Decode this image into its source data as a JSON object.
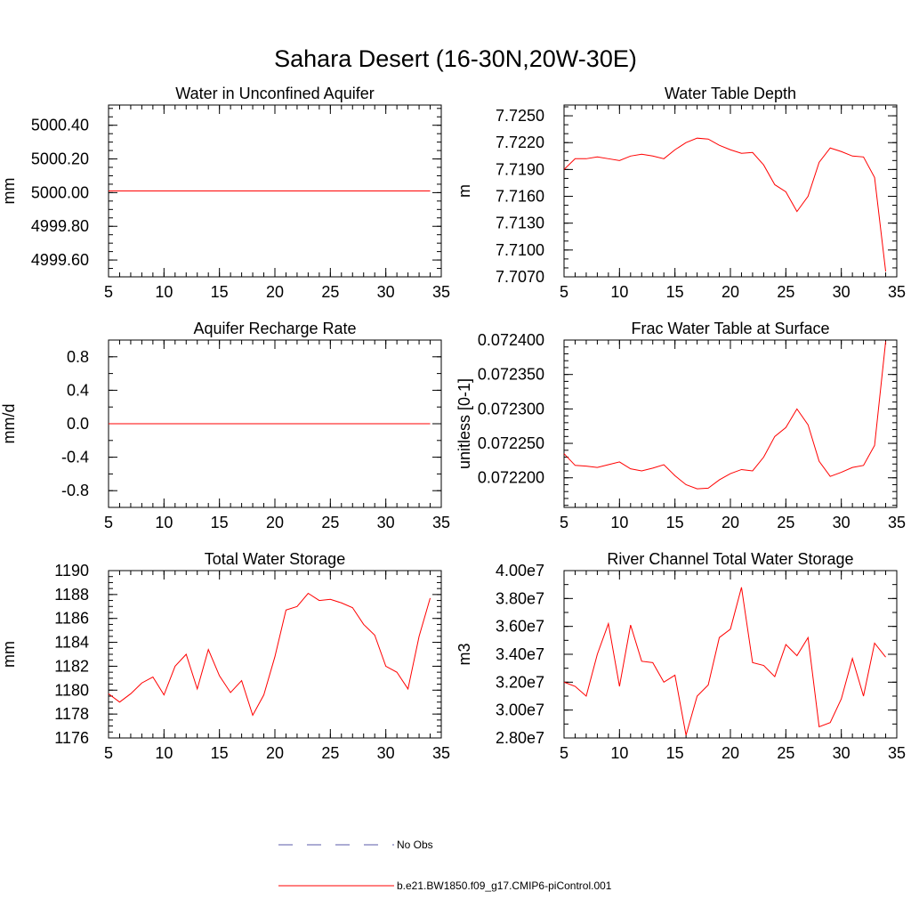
{
  "page": {
    "title": "Sahara Desert (16-30N,20W-30E)"
  },
  "legend": {
    "items": [
      {
        "label": "No Obs",
        "color": "#5a5aa8",
        "dash": true
      },
      {
        "label": "b.e21.BW1850.f09_g17.CMIP6-piControl.001",
        "color": "#ff0000",
        "dash": false
      }
    ]
  },
  "chart_data": [
    {
      "type": "line",
      "title": "Water in Unconfined Aquifer",
      "ylabel": "mm",
      "xlim": [
        5,
        35
      ],
      "ylim": [
        4999.5,
        5000.52
      ],
      "xticks": [
        5,
        10,
        15,
        20,
        25,
        30,
        35
      ],
      "xminor": 1,
      "yticks": [
        4999.6,
        4999.8,
        5000.0,
        5000.2,
        5000.4
      ],
      "ytick_labels": [
        "4999.60",
        "4999.80",
        "5000.00",
        "5000.20",
        "5000.40"
      ],
      "yminor": 0.05,
      "series": [
        {
          "color": "#ff0000",
          "x": [
            5,
            6,
            7,
            8,
            9,
            10,
            11,
            12,
            13,
            14,
            15,
            16,
            17,
            18,
            19,
            20,
            21,
            22,
            23,
            24,
            25,
            26,
            27,
            28,
            29,
            30,
            31,
            32,
            33,
            34
          ],
          "y": [
            5000.01,
            5000.01,
            5000.01,
            5000.01,
            5000.01,
            5000.01,
            5000.01,
            5000.01,
            5000.01,
            5000.01,
            5000.01,
            5000.01,
            5000.01,
            5000.01,
            5000.01,
            5000.01,
            5000.01,
            5000.01,
            5000.01,
            5000.01,
            5000.01,
            5000.01,
            5000.01,
            5000.01,
            5000.01,
            5000.01,
            5000.01,
            5000.01,
            5000.01,
            5000.01
          ]
        }
      ]
    },
    {
      "type": "line",
      "title": "Water Table Depth",
      "ylabel": "m",
      "xlim": [
        5,
        35
      ],
      "ylim": [
        7.707,
        7.7262
      ],
      "xticks": [
        5,
        10,
        15,
        20,
        25,
        30,
        35
      ],
      "xminor": 1,
      "yticks": [
        7.707,
        7.71,
        7.713,
        7.716,
        7.719,
        7.722,
        7.725
      ],
      "ytick_labels": [
        "7.7070",
        "7.7100",
        "7.7130",
        "7.7160",
        "7.7190",
        "7.7220",
        "7.7250"
      ],
      "yminor": 0.001,
      "series": [
        {
          "color": "#ff0000",
          "x": [
            5,
            6,
            7,
            8,
            9,
            10,
            11,
            12,
            13,
            14,
            15,
            16,
            17,
            18,
            19,
            20,
            21,
            22,
            23,
            24,
            25,
            26,
            27,
            28,
            29,
            30,
            31,
            32,
            33,
            34
          ],
          "y": [
            7.719,
            7.7202,
            7.7202,
            7.7204,
            7.7202,
            7.72,
            7.7205,
            7.7207,
            7.7205,
            7.7202,
            7.7212,
            7.722,
            7.7225,
            7.7224,
            7.7217,
            7.7212,
            7.7208,
            7.7209,
            7.7195,
            7.7173,
            7.7165,
            7.7143,
            7.716,
            7.7198,
            7.7214,
            7.721,
            7.7205,
            7.7204,
            7.7181,
            7.7076
          ]
        }
      ]
    },
    {
      "type": "line",
      "title": "Aquifer Recharge Rate",
      "ylabel": "mm/d",
      "xlim": [
        5,
        35
      ],
      "ylim": [
        -1.0,
        1.0
      ],
      "xticks": [
        5,
        10,
        15,
        20,
        25,
        30,
        35
      ],
      "xminor": 1,
      "yticks": [
        -0.8,
        -0.4,
        0.0,
        0.4,
        0.8
      ],
      "ytick_labels": [
        "-0.8",
        "-0.4",
        "0.0",
        "0.4",
        "0.8"
      ],
      "yminor": 0.2,
      "series": [
        {
          "color": "#ff0000",
          "x": [
            5,
            6,
            7,
            8,
            9,
            10,
            11,
            12,
            13,
            14,
            15,
            16,
            17,
            18,
            19,
            20,
            21,
            22,
            23,
            24,
            25,
            26,
            27,
            28,
            29,
            30,
            31,
            32,
            33,
            34
          ],
          "y": [
            0,
            0,
            0,
            0,
            0,
            0,
            0,
            0,
            0,
            0,
            0,
            0,
            0,
            0,
            0,
            0,
            0,
            0,
            0,
            0,
            0,
            0,
            0,
            0,
            0,
            0,
            0,
            0,
            0,
            0
          ]
        }
      ]
    },
    {
      "type": "line",
      "title": "Frac Water Table at Surface",
      "ylabel": "unitless [0-1]",
      "xlim": [
        5,
        35
      ],
      "ylim": [
        0.072157,
        0.0724
      ],
      "xticks": [
        5,
        10,
        15,
        20,
        25,
        30,
        35
      ],
      "xminor": 1,
      "yticks": [
        0.0722,
        0.07225,
        0.0723,
        0.07235,
        0.0724
      ],
      "ytick_labels": [
        "0.072200",
        "0.072250",
        "0.072300",
        "0.072350",
        "0.072400"
      ],
      "yminor": 1e-05,
      "series": [
        {
          "color": "#ff0000",
          "x": [
            5,
            6,
            7,
            8,
            9,
            10,
            11,
            12,
            13,
            14,
            15,
            16,
            17,
            18,
            19,
            20,
            21,
            22,
            23,
            24,
            25,
            26,
            27,
            28,
            29,
            30,
            31,
            32,
            33,
            34
          ],
          "y": [
            0.072235,
            0.072218,
            0.072217,
            0.072215,
            0.072219,
            0.072223,
            0.072213,
            0.07221,
            0.072214,
            0.072219,
            0.072203,
            0.07219,
            0.072184,
            0.072185,
            0.072197,
            0.072206,
            0.072212,
            0.07221,
            0.07223,
            0.07226,
            0.072273,
            0.0723,
            0.072277,
            0.072224,
            0.072202,
            0.072208,
            0.072215,
            0.072218,
            0.072247,
            0.072398
          ]
        }
      ]
    },
    {
      "type": "line",
      "title": "Total Water Storage",
      "ylabel": "mm",
      "xlim": [
        5,
        35
      ],
      "ylim": [
        1176,
        1190
      ],
      "xticks": [
        5,
        10,
        15,
        20,
        25,
        30,
        35
      ],
      "xminor": 1,
      "yticks": [
        1176,
        1178,
        1180,
        1182,
        1184,
        1186,
        1188,
        1190
      ],
      "ytick_labels": [
        "1176",
        "1178",
        "1180",
        "1182",
        "1184",
        "1186",
        "1188",
        "1190"
      ],
      "yminor": 0.5,
      "series": [
        {
          "color": "#ff0000",
          "x": [
            5,
            6,
            7,
            8,
            9,
            10,
            11,
            12,
            13,
            14,
            15,
            16,
            17,
            18,
            19,
            20,
            21,
            22,
            23,
            24,
            25,
            26,
            27,
            28,
            29,
            30,
            31,
            32,
            33,
            34
          ],
          "y": [
            1179.7,
            1179.0,
            1179.7,
            1180.6,
            1181.1,
            1179.6,
            1182.0,
            1183.0,
            1180.1,
            1183.4,
            1181.2,
            1179.8,
            1180.8,
            1177.9,
            1179.6,
            1182.8,
            1186.7,
            1187.0,
            1188.1,
            1187.5,
            1187.6,
            1187.3,
            1186.9,
            1185.5,
            1184.6,
            1182.0,
            1181.5,
            1180.1,
            1184.5,
            1187.7
          ]
        }
      ]
    },
    {
      "type": "line",
      "title": "River Channel Total Water Storage",
      "ylabel": "m3",
      "xlim": [
        5,
        35
      ],
      "ylim": [
        28000000,
        40000000
      ],
      "xticks": [
        5,
        10,
        15,
        20,
        25,
        30,
        35
      ],
      "xminor": 1,
      "yticks": [
        28000000,
        30000000,
        32000000,
        34000000,
        36000000,
        38000000,
        40000000
      ],
      "ytick_labels": [
        "2.80e7",
        "3.00e7",
        "3.20e7",
        "3.40e7",
        "3.60e7",
        "3.80e7",
        "4.00e7"
      ],
      "yminor": 1000000,
      "series": [
        {
          "color": "#ff0000",
          "x": [
            5,
            6,
            7,
            8,
            9,
            10,
            11,
            12,
            13,
            14,
            15,
            16,
            17,
            18,
            19,
            20,
            21,
            22,
            23,
            24,
            25,
            26,
            27,
            28,
            29,
            30,
            31,
            32,
            33,
            34
          ],
          "y": [
            32000000,
            31700000,
            31000000,
            34000000,
            36200000,
            31700000,
            36100000,
            33500000,
            33400000,
            32000000,
            32500000,
            28200000,
            31000000,
            31800000,
            35200000,
            35800000,
            38800000,
            33400000,
            33200000,
            32400000,
            34700000,
            33900000,
            35200000,
            28800000,
            29100000,
            30800000,
            33700000,
            31000000,
            34800000,
            33800000
          ]
        }
      ]
    }
  ]
}
